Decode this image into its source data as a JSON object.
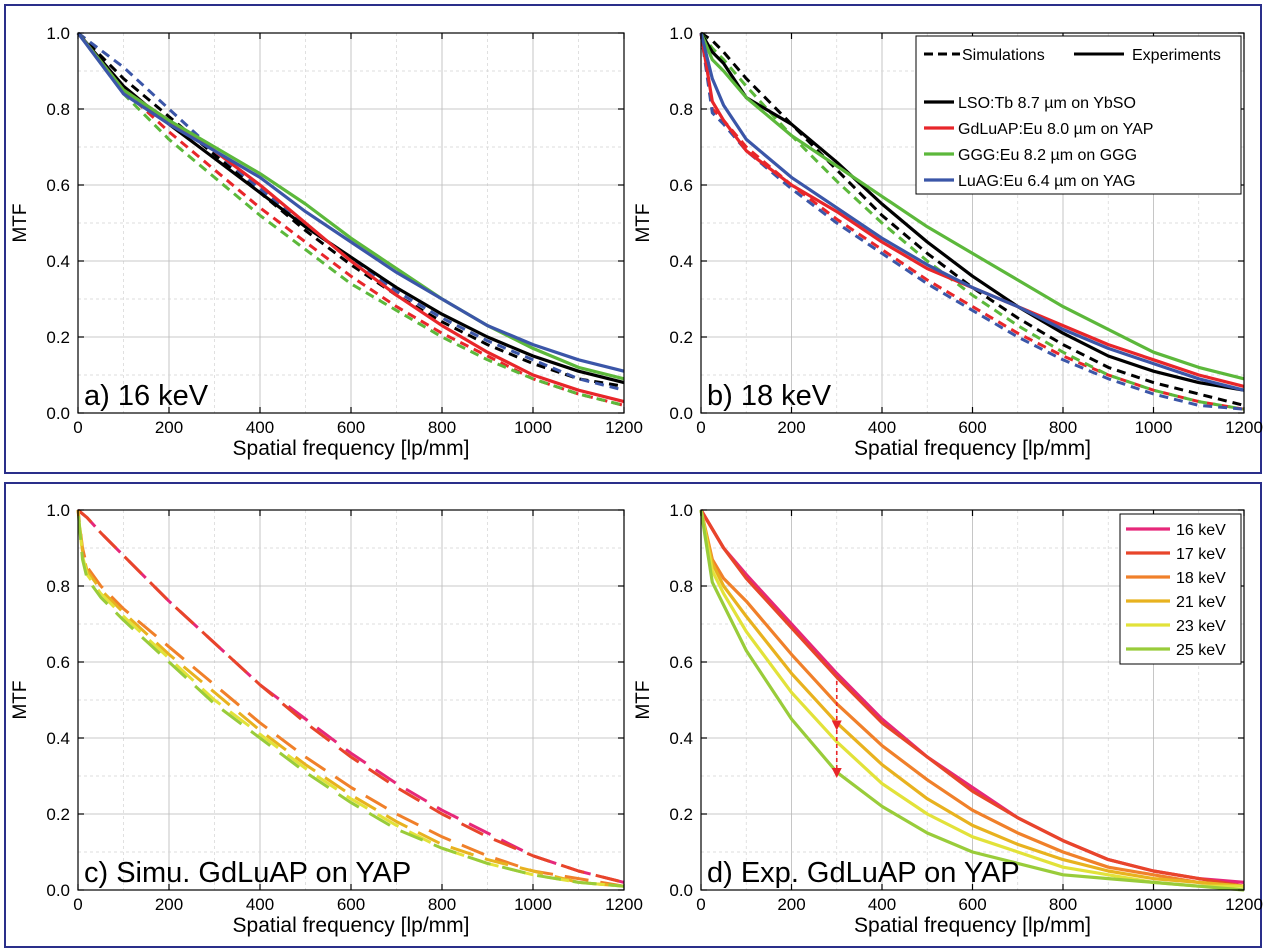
{
  "chart_data": [
    {
      "type": "line",
      "panel_label": "a) 16 keV",
      "xlabel": "Spatial frequency [lp/mm]",
      "ylabel": "MTF",
      "xlim": [
        0,
        1200
      ],
      "ylim": [
        0,
        1.0
      ],
      "xticks": [
        0,
        200,
        400,
        600,
        800,
        1000,
        1200
      ],
      "yticks": [
        "0.0",
        "0.2",
        "0.4",
        "0.6",
        "0.8",
        "1.0"
      ],
      "grid": true,
      "x": [
        0,
        100,
        200,
        300,
        400,
        500,
        600,
        700,
        800,
        900,
        1000,
        1100,
        1200
      ],
      "series": [
        {
          "name": "LSO:Tb 8.7 µm on YbSO",
          "kind": "experiment",
          "color": "#000000",
          "values": [
            1.0,
            0.86,
            0.76,
            0.67,
            0.58,
            0.49,
            0.41,
            0.33,
            0.26,
            0.2,
            0.15,
            0.11,
            0.08
          ]
        },
        {
          "name": "GdLuAP:Eu 8.0 µm on YAP",
          "kind": "experiment",
          "color": "#e8262a",
          "values": [
            1.0,
            0.85,
            0.77,
            0.69,
            0.6,
            0.5,
            0.4,
            0.31,
            0.23,
            0.16,
            0.1,
            0.06,
            0.03
          ]
        },
        {
          "name": "GGG:Eu 8.2 µm on GGG",
          "kind": "experiment",
          "color": "#5cb83b",
          "values": [
            1.0,
            0.85,
            0.77,
            0.7,
            0.63,
            0.55,
            0.46,
            0.38,
            0.3,
            0.23,
            0.17,
            0.12,
            0.09
          ]
        },
        {
          "name": "LuAG:Eu 6.4 µm on YAG",
          "kind": "experiment",
          "color": "#3b56a8",
          "values": [
            1.0,
            0.84,
            0.76,
            0.69,
            0.62,
            0.53,
            0.45,
            0.37,
            0.3,
            0.23,
            0.18,
            0.14,
            0.11
          ]
        },
        {
          "name": "LSO:Tb 8.7 µm on YbSO",
          "kind": "simulation",
          "color": "#000000",
          "values": [
            1.0,
            0.88,
            0.78,
            0.68,
            0.58,
            0.48,
            0.39,
            0.31,
            0.24,
            0.18,
            0.13,
            0.09,
            0.07
          ]
        },
        {
          "name": "GdLuAP:Eu 8.0 µm on YAP",
          "kind": "simulation",
          "color": "#e8262a",
          "values": [
            1.0,
            0.85,
            0.74,
            0.64,
            0.54,
            0.45,
            0.36,
            0.28,
            0.21,
            0.15,
            0.09,
            0.05,
            0.02
          ]
        },
        {
          "name": "GGG:Eu 8.2 µm on GGG",
          "kind": "simulation",
          "color": "#5cb83b",
          "values": [
            1.0,
            0.84,
            0.72,
            0.62,
            0.52,
            0.43,
            0.34,
            0.27,
            0.2,
            0.14,
            0.09,
            0.05,
            0.02
          ]
        },
        {
          "name": "LuAG:Eu 6.4 µm on YAG",
          "kind": "simulation",
          "color": "#3b56a8",
          "values": [
            1.0,
            0.91,
            0.8,
            0.69,
            0.59,
            0.49,
            0.41,
            0.32,
            0.25,
            0.19,
            0.14,
            0.09,
            0.06
          ]
        }
      ]
    },
    {
      "type": "line",
      "panel_label": "b) 18 keV",
      "xlabel": "Spatial frequency [lp/mm]",
      "ylabel": "MTF",
      "xlim": [
        0,
        1200
      ],
      "ylim": [
        0,
        1.0
      ],
      "xticks": [
        0,
        200,
        400,
        600,
        800,
        1000,
        1200
      ],
      "yticks": [
        "0.0",
        "0.2",
        "0.4",
        "0.6",
        "0.8",
        "1.0"
      ],
      "grid": true,
      "legend_position": "top-right",
      "legend_header": {
        "simulations": "Simulations",
        "experiments": "Experiments"
      },
      "legend": [
        "LSO:Tb 8.7 µm on YbSO",
        "GdLuAP:Eu 8.0 µm on YAP",
        "GGG:Eu 8.2 µm on GGG",
        "LuAG:Eu 6.4 µm on YAG"
      ],
      "legend_colors": [
        "#000000",
        "#e8262a",
        "#5cb83b",
        "#3b56a8"
      ],
      "x": [
        0,
        25,
        50,
        100,
        200,
        300,
        400,
        500,
        600,
        700,
        800,
        900,
        1000,
        1100,
        1200
      ],
      "series": [
        {
          "name": "LSO:Tb 8.7 µm on YbSO",
          "kind": "experiment",
          "color": "#000000",
          "values": [
            1.0,
            0.95,
            0.92,
            0.83,
            0.76,
            0.66,
            0.55,
            0.45,
            0.36,
            0.28,
            0.21,
            0.15,
            0.11,
            0.08,
            0.06
          ]
        },
        {
          "name": "GdLuAP:Eu 8.0 µm on YAP",
          "kind": "experiment",
          "color": "#e8262a",
          "values": [
            1.0,
            0.82,
            0.77,
            0.69,
            0.6,
            0.53,
            0.45,
            0.38,
            0.33,
            0.28,
            0.23,
            0.18,
            0.14,
            0.1,
            0.07
          ]
        },
        {
          "name": "GGG:Eu 8.2 µm on GGG",
          "kind": "experiment",
          "color": "#5cb83b",
          "values": [
            1.0,
            0.93,
            0.9,
            0.83,
            0.73,
            0.65,
            0.57,
            0.49,
            0.42,
            0.35,
            0.28,
            0.22,
            0.16,
            0.12,
            0.09
          ]
        },
        {
          "name": "LuAG:Eu 6.4 µm on YAG",
          "kind": "experiment",
          "color": "#3b56a8",
          "values": [
            1.0,
            0.88,
            0.81,
            0.72,
            0.62,
            0.54,
            0.46,
            0.39,
            0.33,
            0.28,
            0.22,
            0.17,
            0.13,
            0.09,
            0.06
          ]
        },
        {
          "name": "LSO:Tb 8.7 µm on YbSO",
          "kind": "simulation",
          "color": "#000000",
          "values": [
            1.0,
            0.98,
            0.95,
            0.88,
            0.76,
            0.64,
            0.52,
            0.42,
            0.33,
            0.25,
            0.18,
            0.12,
            0.08,
            0.05,
            0.02
          ]
        },
        {
          "name": "GdLuAP:Eu 8.0 µm on YAP",
          "kind": "simulation",
          "color": "#e8262a",
          "values": [
            1.0,
            0.8,
            0.77,
            0.7,
            0.6,
            0.51,
            0.43,
            0.35,
            0.28,
            0.21,
            0.15,
            0.1,
            0.06,
            0.03,
            0.01
          ]
        },
        {
          "name": "GGG:Eu 8.2 µm on GGG",
          "kind": "simulation",
          "color": "#5cb83b",
          "values": [
            1.0,
            0.96,
            0.93,
            0.86,
            0.73,
            0.61,
            0.5,
            0.4,
            0.31,
            0.23,
            0.16,
            0.1,
            0.06,
            0.03,
            0.01
          ]
        },
        {
          "name": "LuAG:Eu 6.4 µm on YAG",
          "kind": "simulation",
          "color": "#3b56a8",
          "values": [
            1.0,
            0.79,
            0.76,
            0.69,
            0.59,
            0.5,
            0.42,
            0.34,
            0.27,
            0.2,
            0.14,
            0.09,
            0.05,
            0.02,
            0.01
          ]
        }
      ]
    },
    {
      "type": "line",
      "panel_label": "c) Simu. GdLuAP on YAP",
      "xlabel": "Spatial frequency [lp/mm]",
      "ylabel": "MTF",
      "xlim": [
        0,
        1200
      ],
      "ylim": [
        0,
        1.0
      ],
      "xticks": [
        0,
        200,
        400,
        600,
        800,
        1000,
        1200
      ],
      "yticks": [
        "0.0",
        "0.2",
        "0.4",
        "0.6",
        "0.8",
        "1.0"
      ],
      "grid": true,
      "x": [
        0,
        10,
        20,
        50,
        100,
        200,
        300,
        400,
        500,
        600,
        700,
        800,
        900,
        1000,
        1100,
        1200
      ],
      "series": [
        {
          "name": "16 keV",
          "kind": "simulation",
          "color": "#e6287a",
          "values": [
            1.0,
            0.99,
            0.98,
            0.94,
            0.88,
            0.76,
            0.65,
            0.54,
            0.45,
            0.36,
            0.28,
            0.21,
            0.15,
            0.09,
            0.05,
            0.02
          ]
        },
        {
          "name": "17 keV",
          "kind": "simulation",
          "color": "#e8452a",
          "values": [
            1.0,
            0.99,
            0.98,
            0.94,
            0.88,
            0.76,
            0.65,
            0.54,
            0.44,
            0.35,
            0.27,
            0.2,
            0.14,
            0.09,
            0.05,
            0.02
          ]
        },
        {
          "name": "18 keV",
          "kind": "simulation",
          "color": "#f0802a",
          "values": [
            1.0,
            0.9,
            0.85,
            0.8,
            0.74,
            0.64,
            0.54,
            0.44,
            0.35,
            0.27,
            0.2,
            0.14,
            0.09,
            0.05,
            0.03,
            0.01
          ]
        },
        {
          "name": "21 keV",
          "kind": "simulation",
          "color": "#e8b21f",
          "values": [
            1.0,
            0.89,
            0.84,
            0.79,
            0.73,
            0.62,
            0.52,
            0.42,
            0.33,
            0.25,
            0.18,
            0.12,
            0.08,
            0.05,
            0.02,
            0.01
          ]
        },
        {
          "name": "23 keV",
          "kind": "simulation",
          "color": "#e2e23a",
          "values": [
            1.0,
            0.88,
            0.83,
            0.78,
            0.72,
            0.61,
            0.5,
            0.41,
            0.32,
            0.24,
            0.17,
            0.11,
            0.07,
            0.04,
            0.02,
            0.01
          ]
        },
        {
          "name": "25 keV",
          "kind": "simulation",
          "color": "#99cc3a",
          "values": [
            1.0,
            0.87,
            0.82,
            0.77,
            0.71,
            0.6,
            0.49,
            0.4,
            0.31,
            0.23,
            0.16,
            0.11,
            0.07,
            0.04,
            0.02,
            0.01
          ]
        }
      ]
    },
    {
      "type": "line",
      "panel_label": "d) Exp. GdLuAP on YAP",
      "xlabel": "Spatial frequency [lp/mm]",
      "ylabel": "MTF",
      "xlim": [
        0,
        1200
      ],
      "ylim": [
        0,
        1.0
      ],
      "xticks": [
        0,
        200,
        400,
        600,
        800,
        1000,
        1200
      ],
      "yticks": [
        "0.0",
        "0.2",
        "0.4",
        "0.6",
        "0.8",
        "1.0"
      ],
      "grid": true,
      "legend_position": "top-right",
      "legend": [
        "16 keV",
        "17 keV",
        "18 keV",
        "21 keV",
        "23 keV",
        "25 keV"
      ],
      "legend_colors": [
        "#e6287a",
        "#e8452a",
        "#f0802a",
        "#e8b21f",
        "#e2e23a",
        "#99cc3a"
      ],
      "annotation": {
        "type": "arrow",
        "x": 300,
        "from": 0.55,
        "to": 0.3,
        "color": "#e8262a"
      },
      "x": [
        0,
        25,
        50,
        100,
        200,
        300,
        400,
        500,
        600,
        700,
        800,
        900,
        1000,
        1100,
        1200
      ],
      "series": [
        {
          "name": "16 keV",
          "color": "#e6287a",
          "values": [
            1.0,
            0.95,
            0.9,
            0.83,
            0.7,
            0.57,
            0.45,
            0.35,
            0.27,
            0.19,
            0.13,
            0.08,
            0.05,
            0.03,
            0.02
          ]
        },
        {
          "name": "17 keV",
          "color": "#e8452a",
          "values": [
            1.0,
            0.95,
            0.9,
            0.82,
            0.69,
            0.56,
            0.44,
            0.35,
            0.26,
            0.19,
            0.13,
            0.08,
            0.05,
            0.03,
            0.01
          ]
        },
        {
          "name": "18 keV",
          "color": "#f0802a",
          "values": [
            1.0,
            0.87,
            0.82,
            0.76,
            0.62,
            0.49,
            0.38,
            0.29,
            0.21,
            0.15,
            0.1,
            0.06,
            0.04,
            0.02,
            0.01
          ]
        },
        {
          "name": "21 keV",
          "color": "#e8b21f",
          "values": [
            1.0,
            0.86,
            0.8,
            0.72,
            0.57,
            0.44,
            0.33,
            0.24,
            0.17,
            0.12,
            0.08,
            0.05,
            0.03,
            0.02,
            0.01
          ]
        },
        {
          "name": "23 keV",
          "color": "#e2e23a",
          "values": [
            1.0,
            0.84,
            0.78,
            0.68,
            0.52,
            0.39,
            0.28,
            0.2,
            0.14,
            0.1,
            0.06,
            0.04,
            0.02,
            0.01,
            0.01
          ]
        },
        {
          "name": "25 keV",
          "color": "#99cc3a",
          "values": [
            1.0,
            0.81,
            0.75,
            0.63,
            0.45,
            0.31,
            0.22,
            0.15,
            0.1,
            0.07,
            0.04,
            0.03,
            0.02,
            0.01,
            0.0
          ]
        }
      ]
    }
  ]
}
